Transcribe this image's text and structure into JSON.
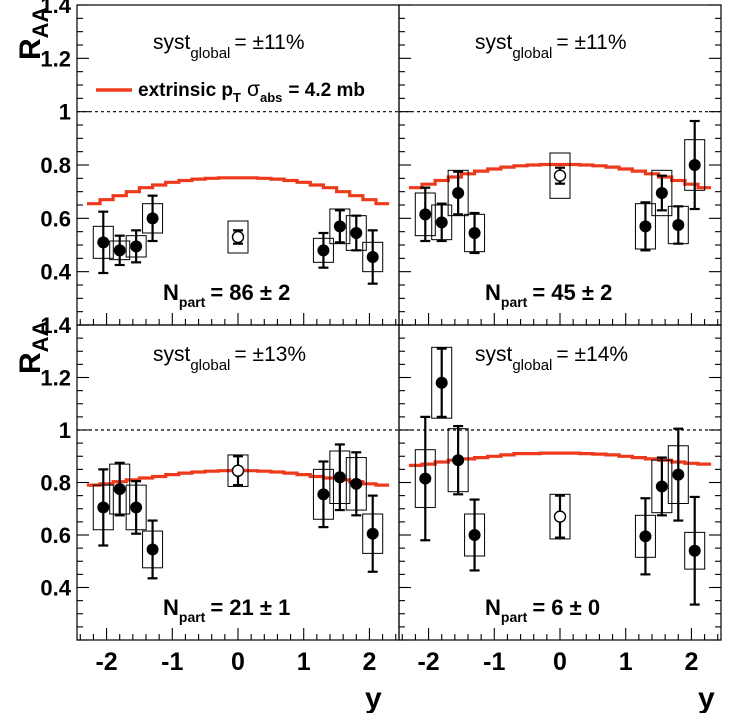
{
  "chart_data": {
    "type": "scatter",
    "layout": "2x2 panels",
    "ylabel": {
      "main": "R",
      "sub": "AA"
    },
    "xlabel": "y",
    "xlim": [
      -2.45,
      2.45
    ],
    "ylim": [
      0.2,
      1.4
    ],
    "yticks": [
      "0.4",
      "0.6",
      "0.8",
      "1",
      "1.2",
      "1.4"
    ],
    "xticks": [
      "-2",
      "-1",
      "0",
      "1",
      "2"
    ],
    "reference_line": 1.0,
    "legend": {
      "label_main": "extrinsic p",
      "label_sub": "T",
      "label_sigma": "σ",
      "label_sigma_sub": "abs",
      "label_value": "= 4.2 mb",
      "color": "#ee3a1c"
    },
    "syst_label": {
      "main": "syst",
      "sub": "global"
    },
    "npart_label": {
      "main": "N",
      "sub": "part"
    },
    "panels": [
      {
        "syst_value": "= ±11%",
        "npart_value": "= 86 ± 2",
        "model_curve": [
          {
            "x": -2.2,
            "y": 0.655
          },
          {
            "x": -2.0,
            "y": 0.67
          },
          {
            "x": -1.8,
            "y": 0.685
          },
          {
            "x": -1.6,
            "y": 0.7
          },
          {
            "x": -1.4,
            "y": 0.715
          },
          {
            "x": -1.2,
            "y": 0.725
          },
          {
            "x": -1.0,
            "y": 0.735
          },
          {
            "x": -0.8,
            "y": 0.742
          },
          {
            "x": -0.6,
            "y": 0.747
          },
          {
            "x": -0.4,
            "y": 0.75
          },
          {
            "x": -0.2,
            "y": 0.752
          },
          {
            "x": 0.0,
            "y": 0.752
          },
          {
            "x": 0.2,
            "y": 0.752
          },
          {
            "x": 0.4,
            "y": 0.75
          },
          {
            "x": 0.6,
            "y": 0.747
          },
          {
            "x": 0.8,
            "y": 0.742
          },
          {
            "x": 1.0,
            "y": 0.735
          },
          {
            "x": 1.2,
            "y": 0.725
          },
          {
            "x": 1.4,
            "y": 0.715
          },
          {
            "x": 1.6,
            "y": 0.7
          },
          {
            "x": 1.8,
            "y": 0.685
          },
          {
            "x": 2.0,
            "y": 0.67
          },
          {
            "x": 2.2,
            "y": 0.655
          }
        ],
        "points": [
          {
            "x": -2.05,
            "y": 0.51,
            "err": 0.115,
            "sys": 0.06,
            "open": false
          },
          {
            "x": -1.8,
            "y": 0.48,
            "err": 0.055,
            "sys": 0.035,
            "open": false
          },
          {
            "x": -1.55,
            "y": 0.495,
            "err": 0.06,
            "sys": 0.04,
            "open": false
          },
          {
            "x": -1.3,
            "y": 0.6,
            "err": 0.085,
            "sys": 0.055,
            "open": false
          },
          {
            "x": 0.0,
            "y": 0.53,
            "err": 0.025,
            "sys": 0.06,
            "open": true
          },
          {
            "x": 1.3,
            "y": 0.48,
            "err": 0.065,
            "sys": 0.045,
            "open": false
          },
          {
            "x": 1.55,
            "y": 0.57,
            "err": 0.06,
            "sys": 0.065,
            "open": false
          },
          {
            "x": 1.8,
            "y": 0.545,
            "err": 0.065,
            "sys": 0.065,
            "open": false
          },
          {
            "x": 2.05,
            "y": 0.455,
            "err": 0.1,
            "sys": 0.055,
            "open": false
          }
        ]
      },
      {
        "syst_value": "= ±11%",
        "npart_value": "= 45 ± 2",
        "model_curve": [
          {
            "x": -2.2,
            "y": 0.715
          },
          {
            "x": -2.0,
            "y": 0.728
          },
          {
            "x": -1.8,
            "y": 0.742
          },
          {
            "x": -1.6,
            "y": 0.755
          },
          {
            "x": -1.4,
            "y": 0.767
          },
          {
            "x": -1.2,
            "y": 0.777
          },
          {
            "x": -1.0,
            "y": 0.785
          },
          {
            "x": -0.8,
            "y": 0.792
          },
          {
            "x": -0.6,
            "y": 0.797
          },
          {
            "x": -0.4,
            "y": 0.8
          },
          {
            "x": -0.2,
            "y": 0.802
          },
          {
            "x": 0.0,
            "y": 0.802
          },
          {
            "x": 0.2,
            "y": 0.802
          },
          {
            "x": 0.4,
            "y": 0.8
          },
          {
            "x": 0.6,
            "y": 0.797
          },
          {
            "x": 0.8,
            "y": 0.792
          },
          {
            "x": 1.0,
            "y": 0.785
          },
          {
            "x": 1.2,
            "y": 0.777
          },
          {
            "x": 1.4,
            "y": 0.767
          },
          {
            "x": 1.6,
            "y": 0.755
          },
          {
            "x": 1.8,
            "y": 0.742
          },
          {
            "x": 2.0,
            "y": 0.728
          },
          {
            "x": 2.2,
            "y": 0.715
          }
        ],
        "points": [
          {
            "x": -2.05,
            "y": 0.615,
            "err": 0.1,
            "sys": 0.08,
            "open": false
          },
          {
            "x": -1.8,
            "y": 0.585,
            "err": 0.07,
            "sys": 0.065,
            "open": false
          },
          {
            "x": -1.55,
            "y": 0.695,
            "err": 0.08,
            "sys": 0.085,
            "open": false
          },
          {
            "x": -1.3,
            "y": 0.545,
            "err": 0.075,
            "sys": 0.07,
            "open": false
          },
          {
            "x": 0.0,
            "y": 0.76,
            "err": 0.03,
            "sys": 0.085,
            "open": true
          },
          {
            "x": 1.3,
            "y": 0.57,
            "err": 0.09,
            "sys": 0.085,
            "open": false
          },
          {
            "x": 1.55,
            "y": 0.695,
            "err": 0.065,
            "sys": 0.085,
            "open": false
          },
          {
            "x": 1.8,
            "y": 0.575,
            "err": 0.07,
            "sys": 0.07,
            "open": false
          },
          {
            "x": 2.05,
            "y": 0.8,
            "err": 0.165,
            "sys": 0.095,
            "open": false
          }
        ]
      },
      {
        "syst_value": "= ±13%",
        "npart_value": "= 21 ± 1",
        "model_curve": [
          {
            "x": -2.2,
            "y": 0.79
          },
          {
            "x": -2.0,
            "y": 0.795
          },
          {
            "x": -1.8,
            "y": 0.803
          },
          {
            "x": -1.6,
            "y": 0.81
          },
          {
            "x": -1.4,
            "y": 0.817
          },
          {
            "x": -1.2,
            "y": 0.823
          },
          {
            "x": -1.0,
            "y": 0.83
          },
          {
            "x": -0.8,
            "y": 0.836
          },
          {
            "x": -0.6,
            "y": 0.84
          },
          {
            "x": -0.4,
            "y": 0.843
          },
          {
            "x": -0.2,
            "y": 0.845
          },
          {
            "x": 0.0,
            "y": 0.846
          },
          {
            "x": 0.2,
            "y": 0.845
          },
          {
            "x": 0.4,
            "y": 0.843
          },
          {
            "x": 0.6,
            "y": 0.84
          },
          {
            "x": 0.8,
            "y": 0.836
          },
          {
            "x": 1.0,
            "y": 0.83
          },
          {
            "x": 1.2,
            "y": 0.823
          },
          {
            "x": 1.4,
            "y": 0.817
          },
          {
            "x": 1.6,
            "y": 0.81
          },
          {
            "x": 1.8,
            "y": 0.803
          },
          {
            "x": 2.0,
            "y": 0.795
          },
          {
            "x": 2.2,
            "y": 0.79
          }
        ],
        "points": [
          {
            "x": -2.05,
            "y": 0.705,
            "err": 0.145,
            "sys": 0.085,
            "open": false
          },
          {
            "x": -1.8,
            "y": 0.775,
            "err": 0.1,
            "sys": 0.095,
            "open": false
          },
          {
            "x": -1.55,
            "y": 0.705,
            "err": 0.1,
            "sys": 0.085,
            "open": false
          },
          {
            "x": -1.3,
            "y": 0.545,
            "err": 0.11,
            "sys": 0.07,
            "open": false
          },
          {
            "x": 0.0,
            "y": 0.845,
            "err": 0.055,
            "sys": 0.06,
            "open": true
          },
          {
            "x": 1.3,
            "y": 0.755,
            "err": 0.125,
            "sys": 0.095,
            "open": false
          },
          {
            "x": 1.55,
            "y": 0.82,
            "err": 0.125,
            "sys": 0.1,
            "open": false
          },
          {
            "x": 1.8,
            "y": 0.795,
            "err": 0.12,
            "sys": 0.1,
            "open": false
          },
          {
            "x": 2.05,
            "y": 0.605,
            "err": 0.145,
            "sys": 0.075,
            "open": false
          }
        ]
      },
      {
        "syst_value": "= ±14%",
        "npart_value": "= 6 ± 0",
        "model_curve": [
          {
            "x": -2.2,
            "y": 0.865
          },
          {
            "x": -2.0,
            "y": 0.87
          },
          {
            "x": -1.8,
            "y": 0.878
          },
          {
            "x": -1.6,
            "y": 0.885
          },
          {
            "x": -1.4,
            "y": 0.89
          },
          {
            "x": -1.2,
            "y": 0.895
          },
          {
            "x": -1.0,
            "y": 0.9
          },
          {
            "x": -0.8,
            "y": 0.905
          },
          {
            "x": -0.6,
            "y": 0.91
          },
          {
            "x": -0.4,
            "y": 0.91
          },
          {
            "x": -0.2,
            "y": 0.912
          },
          {
            "x": 0.0,
            "y": 0.912
          },
          {
            "x": 0.2,
            "y": 0.912
          },
          {
            "x": 0.4,
            "y": 0.91
          },
          {
            "x": 0.6,
            "y": 0.908
          },
          {
            "x": 0.8,
            "y": 0.905
          },
          {
            "x": 1.0,
            "y": 0.9
          },
          {
            "x": 1.2,
            "y": 0.895
          },
          {
            "x": 1.4,
            "y": 0.89
          },
          {
            "x": 1.6,
            "y": 0.885
          },
          {
            "x": 1.8,
            "y": 0.878
          },
          {
            "x": 2.0,
            "y": 0.873
          },
          {
            "x": 2.2,
            "y": 0.87
          }
        ],
        "points": [
          {
            "x": -2.05,
            "y": 0.815,
            "err": 0.235,
            "sys": 0.11,
            "open": false
          },
          {
            "x": -1.8,
            "y": 1.18,
            "err": 0.13,
            "sys": 0.135,
            "open": false
          },
          {
            "x": -1.55,
            "y": 0.885,
            "err": 0.13,
            "sys": 0.12,
            "open": false
          },
          {
            "x": -1.3,
            "y": 0.6,
            "err": 0.135,
            "sys": 0.08,
            "open": false
          },
          {
            "x": 0.0,
            "y": 0.67,
            "err": 0.08,
            "sys": 0.085,
            "open": true
          },
          {
            "x": 1.3,
            "y": 0.595,
            "err": 0.145,
            "sys": 0.08,
            "open": false
          },
          {
            "x": 1.55,
            "y": 0.785,
            "err": 0.11,
            "sys": 0.1,
            "open": false
          },
          {
            "x": 1.8,
            "y": 0.83,
            "err": 0.175,
            "sys": 0.11,
            "open": false
          },
          {
            "x": 2.05,
            "y": 0.54,
            "err": 0.205,
            "sys": 0.07,
            "open": false
          }
        ]
      }
    ]
  }
}
